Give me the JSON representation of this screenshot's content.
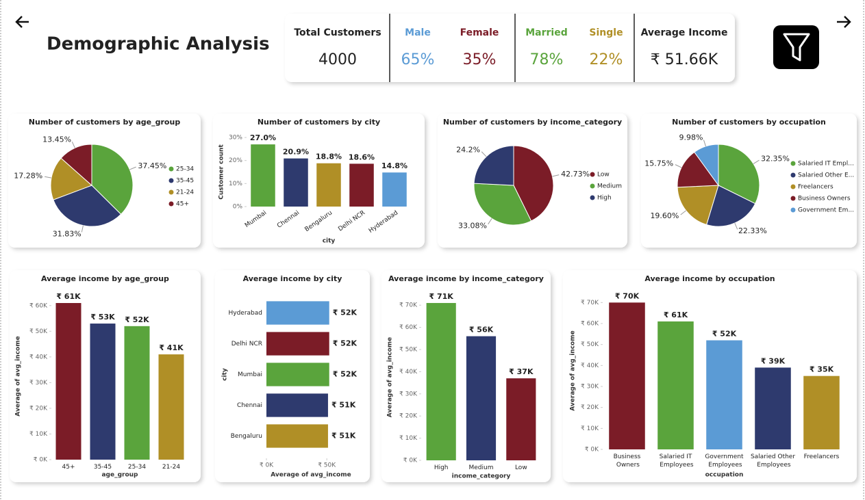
{
  "title": "Demographic Analysis",
  "kpis": [
    {
      "label": "Total Customers",
      "value": "4000",
      "color": "#222222"
    },
    {
      "label": "Male",
      "value": "65%",
      "color": "#5b9bd5"
    },
    {
      "label": "Female",
      "value": "35%",
      "color": "#7b1c27"
    },
    {
      "label": "Married",
      "value": "78%",
      "color": "#5aa43c"
    },
    {
      "label": "Single",
      "value": "22%",
      "color": "#b08f26"
    },
    {
      "label": "Average Income",
      "value": "₹ 51.66K",
      "color": "#222222"
    }
  ],
  "chart_data": [
    {
      "type": "pie",
      "title": "Number of customers by age_group",
      "categories": [
        "25-34",
        "35-45",
        "21-24",
        "45+"
      ],
      "values": [
        37.45,
        31.83,
        17.28,
        13.45
      ],
      "value_labels": [
        "37.45%",
        "31.83%",
        "17.28%",
        "13.45%"
      ],
      "colors": [
        "#5aa43c",
        "#2e3a6e",
        "#b08f26",
        "#7b1c27"
      ],
      "legend": "right"
    },
    {
      "type": "bar",
      "title": "Number of customers by city",
      "categories": [
        "Mumbai",
        "Chennai",
        "Bengaluru",
        "Delhi NCR",
        "Hyderabad"
      ],
      "values": [
        27.0,
        20.9,
        18.8,
        18.6,
        14.8
      ],
      "value_labels": [
        "27.0%",
        "20.9%",
        "18.8%",
        "18.6%",
        "14.8%"
      ],
      "colors": [
        "#5aa43c",
        "#2e3a6e",
        "#b08f26",
        "#7b1c27",
        "#5b9bd5"
      ],
      "ylim": [
        0,
        30
      ],
      "yticks": [
        {
          "value": 0,
          "label": "0%"
        },
        {
          "value": 10,
          "label": "10%"
        },
        {
          "value": 20,
          "label": "20%"
        },
        {
          "value": 30,
          "label": "30%"
        }
      ],
      "ylabel": "Customer count",
      "xlabel": "city"
    },
    {
      "type": "pie",
      "title": "Number of customers by income_category",
      "categories": [
        "Low",
        "Medium",
        "High"
      ],
      "values": [
        42.73,
        33.08,
        24.2
      ],
      "value_labels": [
        "42.73%",
        "33.08%",
        "24.2%"
      ],
      "colors": [
        "#7b1c27",
        "#5aa43c",
        "#2e3a6e"
      ],
      "legend": "right"
    },
    {
      "type": "pie",
      "title": "Number of customers by occupation",
      "categories": [
        "Salaried IT Empl...",
        "Salaried Other E...",
        "Freelancers",
        "Business Owners",
        "Government Em..."
      ],
      "values": [
        32.35,
        22.33,
        19.6,
        15.75,
        9.98
      ],
      "value_labels": [
        "32.35%",
        "22.33%",
        "19.60%",
        "15.75%",
        "9.98%"
      ],
      "colors": [
        "#5aa43c",
        "#2e3a6e",
        "#b08f26",
        "#7b1c27",
        "#5b9bd5"
      ],
      "legend": "right"
    },
    {
      "type": "bar",
      "title": "Average income by age_group",
      "categories": [
        "45+",
        "35-45",
        "25-34",
        "21-24"
      ],
      "values": [
        61000,
        53000,
        52000,
        41000
      ],
      "value_labels": [
        "₹ 61K",
        "₹ 53K",
        "₹ 52K",
        "₹ 41K"
      ],
      "colors": [
        "#7b1c27",
        "#2e3a6e",
        "#5aa43c",
        "#b08f26"
      ],
      "ylim": [
        0,
        65000
      ],
      "yticks": [
        {
          "value": 0,
          "label": "₹ 0K"
        },
        {
          "value": 10000,
          "label": "₹ 10K"
        },
        {
          "value": 20000,
          "label": "₹ 20K"
        },
        {
          "value": 30000,
          "label": "₹ 30K"
        },
        {
          "value": 40000,
          "label": "₹ 40K"
        },
        {
          "value": 50000,
          "label": "₹ 50K"
        },
        {
          "value": 60000,
          "label": "₹ 60K"
        }
      ],
      "ylabel": "Average of avg_income",
      "xlabel": "age_group"
    },
    {
      "type": "barh",
      "title": "Average income by city",
      "categories": [
        "Hyderabad",
        "Delhi NCR",
        "Mumbai",
        "Chennai",
        "Bengaluru"
      ],
      "values": [
        52000,
        52000,
        52000,
        51000,
        51000
      ],
      "value_labels": [
        "₹ 52K",
        "₹ 52K",
        "₹ 52K",
        "₹ 51K",
        "₹ 51K"
      ],
      "colors": [
        "#5b9bd5",
        "#7b1c27",
        "#5aa43c",
        "#2e3a6e",
        "#b08f26"
      ],
      "xlim": [
        0,
        55000
      ],
      "xticks": [
        {
          "value": 0,
          "label": "₹ 0K"
        },
        {
          "value": 50000,
          "label": "₹ 50K"
        }
      ],
      "ylabel": "city",
      "xlabel": "Average of avg_income"
    },
    {
      "type": "bar",
      "title": "Average income by income_category",
      "categories": [
        "High",
        "Medium",
        "Low"
      ],
      "values": [
        71000,
        56000,
        37000
      ],
      "value_labels": [
        "₹ 71K",
        "₹ 56K",
        "₹ 37K"
      ],
      "colors": [
        "#5aa43c",
        "#2e3a6e",
        "#7b1c27"
      ],
      "ylim": [
        0,
        75000
      ],
      "yticks": [
        {
          "value": 0,
          "label": "₹ 0K"
        },
        {
          "value": 10000,
          "label": "₹ 10K"
        },
        {
          "value": 20000,
          "label": "₹ 20K"
        },
        {
          "value": 30000,
          "label": "₹ 30K"
        },
        {
          "value": 40000,
          "label": "₹ 40K"
        },
        {
          "value": 50000,
          "label": "₹ 50K"
        },
        {
          "value": 60000,
          "label": "₹ 60K"
        },
        {
          "value": 70000,
          "label": "₹ 70K"
        }
      ],
      "ylabel": "Average of avg_income",
      "xlabel": "income_category"
    },
    {
      "type": "bar",
      "title": "Average income by occupation",
      "categories": [
        "Business Owners",
        "Salaried IT Employees",
        "Government Employees",
        "Salaried Other Employees",
        "Freelancers"
      ],
      "values": [
        70000,
        61000,
        52000,
        39000,
        35000
      ],
      "value_labels": [
        "₹ 70K",
        "₹ 61K",
        "₹ 52K",
        "₹ 39K",
        "₹ 35K"
      ],
      "colors": [
        "#7b1c27",
        "#5aa43c",
        "#5b9bd5",
        "#2e3a6e",
        "#b08f26"
      ],
      "ylim": [
        0,
        75000
      ],
      "yticks": [
        {
          "value": 0,
          "label": "₹ 0K"
        },
        {
          "value": 10000,
          "label": "₹ 10K"
        },
        {
          "value": 20000,
          "label": "₹ 20K"
        },
        {
          "value": 30000,
          "label": "₹ 30K"
        },
        {
          "value": 40000,
          "label": "₹ 40K"
        },
        {
          "value": 50000,
          "label": "₹ 50K"
        },
        {
          "value": 60000,
          "label": "₹ 60K"
        },
        {
          "value": 70000,
          "label": "₹ 70K"
        }
      ],
      "ylabel": "Average of avg_income",
      "xlabel": "occupation"
    }
  ]
}
